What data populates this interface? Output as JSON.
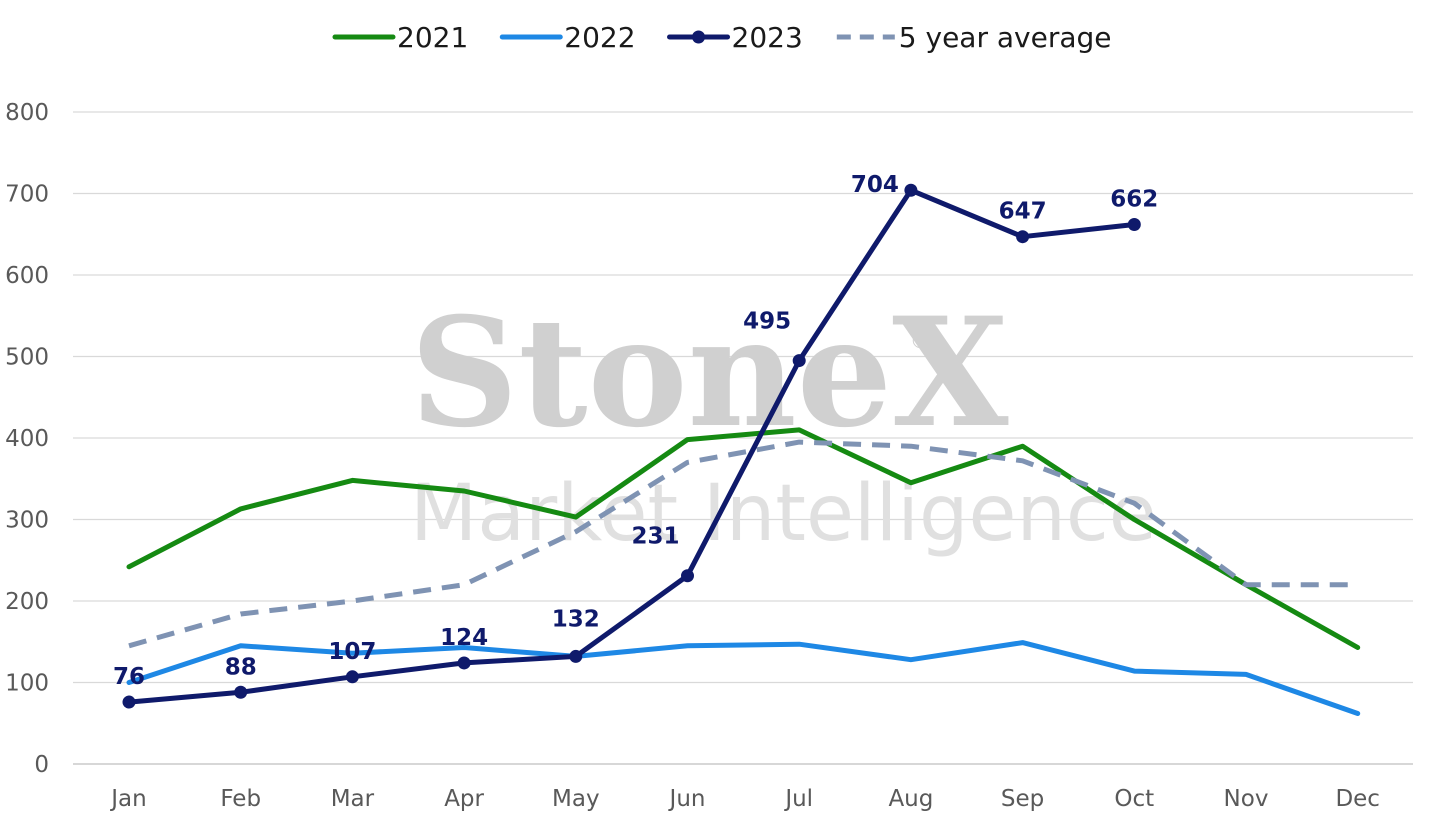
{
  "watermark": {
    "brand": "StoneX",
    "sub": "Market Intelligence",
    "reg": "®"
  },
  "legend_placement": "top-center",
  "chart_data": {
    "type": "line",
    "categories": [
      "Jan",
      "Feb",
      "Mar",
      "Apr",
      "May",
      "Jun",
      "Jul",
      "Aug",
      "Sep",
      "Oct",
      "Nov",
      "Dec"
    ],
    "ylim": [
      0,
      800
    ],
    "yticks": [
      0,
      100,
      200,
      300,
      400,
      500,
      600,
      700,
      800
    ],
    "grid": true,
    "title": "",
    "xlabel": "",
    "ylabel": "",
    "series": [
      {
        "name": "2021",
        "color": "#158a12",
        "style": "solid",
        "markers": false,
        "labels": false,
        "values": [
          242,
          313,
          348,
          335,
          303,
          398,
          410,
          345,
          390,
          300,
          220,
          143
        ]
      },
      {
        "name": "2022",
        "color": "#1e88e5",
        "style": "solid",
        "markers": false,
        "labels": false,
        "values": [
          100,
          145,
          136,
          143,
          132,
          145,
          147,
          128,
          149,
          114,
          110,
          62
        ]
      },
      {
        "name": "2023",
        "color": "#0f1a6b",
        "style": "solid",
        "markers": true,
        "labels": true,
        "values": [
          76,
          88,
          107,
          124,
          132,
          231,
          495,
          704,
          647,
          662,
          null,
          null
        ]
      },
      {
        "name": "5 year average",
        "color": "#7f93b3",
        "style": "dashed",
        "markers": false,
        "labels": false,
        "values": [
          145,
          184,
          200,
          220,
          285,
          370,
          395,
          390,
          372,
          320,
          220,
          220
        ]
      }
    ]
  }
}
